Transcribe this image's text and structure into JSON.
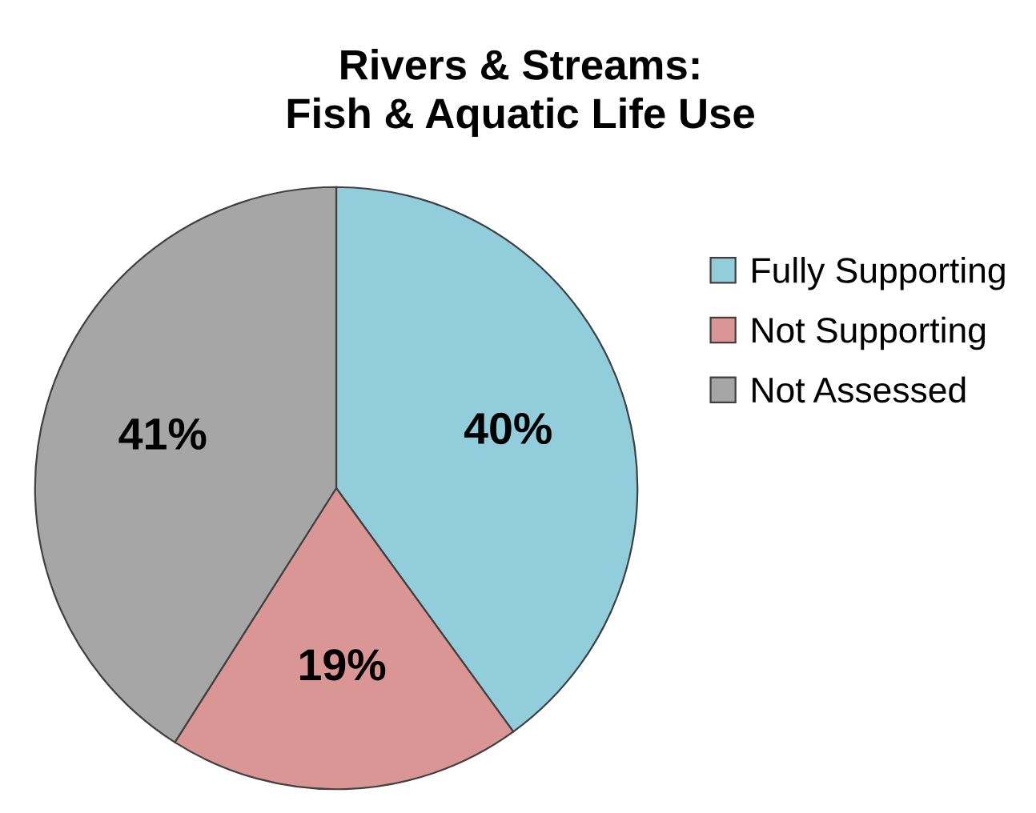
{
  "chart_data": {
    "type": "pie",
    "title": "Rivers & Streams:\nFish & Aquatic Life Use",
    "categories": [
      "Fully Supporting",
      "Not Supporting",
      "Not Assessed"
    ],
    "values": [
      40,
      19,
      41
    ],
    "colors": [
      "#92cddc",
      "#d99694",
      "#a6a6a6"
    ],
    "value_labels": [
      "40%",
      "19%",
      "41%"
    ],
    "legend": "right"
  }
}
